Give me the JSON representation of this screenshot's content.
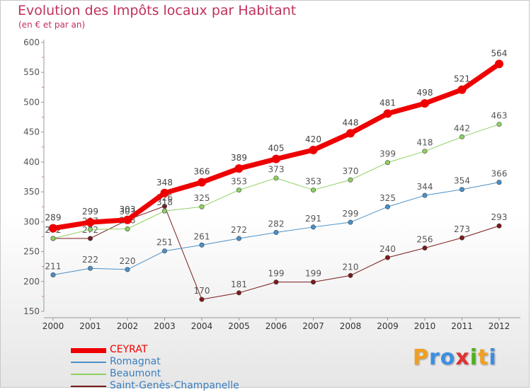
{
  "header": {
    "title": "Evolution des Impôts locaux par Habitant",
    "subtitle": "(en € et par an)"
  },
  "logo": {
    "text": "Proxiti",
    "letter_colors": [
      "#f0a020",
      "#3d8ee0",
      "#3d8ee0",
      "#e03030",
      "#50b020",
      "#f0a020",
      "#3d8ee0"
    ]
  },
  "chart_data": {
    "type": "line",
    "title": "Evolution des Impôts locaux par Habitant",
    "subtitle": "(en € et par an)",
    "xlabel": "",
    "ylabel": "",
    "x": [
      "2000",
      "2001",
      "2002",
      "2003",
      "2004",
      "2005",
      "2006",
      "2007",
      "2008",
      "2009",
      "2010",
      "2011",
      "2012"
    ],
    "ylim": [
      150,
      600
    ],
    "yticks": [
      150,
      200,
      250,
      300,
      350,
      400,
      450,
      500,
      550,
      600
    ],
    "grid": false,
    "legend_position": "bottom-left",
    "series": [
      {
        "name": "Saint-Genès-Champanelle",
        "color": "#7a1a1a",
        "label_color": "#555555",
        "line_width": 1,
        "values": [
          272,
          272,
          303,
          326,
          170,
          181,
          199,
          199,
          210,
          240,
          256,
          273,
          293
        ],
        "labels": [
          "272",
          "272",
          "303",
          "326",
          "170",
          "181",
          "199",
          "199",
          "210",
          "240",
          "256",
          "273",
          "293"
        ]
      },
      {
        "name": "Romagnat",
        "color": "#4a90c8",
        "label_color": "#555555",
        "line_width": 1,
        "values": [
          211,
          222,
          220,
          251,
          261,
          272,
          282,
          291,
          299,
          325,
          344,
          354,
          366
        ],
        "labels": [
          "211",
          "222",
          "220",
          "251",
          "261",
          "272",
          "282",
          "291",
          "299",
          "325",
          "344",
          "354",
          "366"
        ]
      },
      {
        "name": "Beaumont",
        "color": "#8ed160",
        "label_color": "#555555",
        "line_width": 1,
        "values": [
          272,
          287,
          288,
          318,
          325,
          353,
          373,
          353,
          370,
          399,
          418,
          442,
          463
        ],
        "labels": [
          "272",
          "287",
          "288",
          "318",
          "325",
          "353",
          "373",
          "353",
          "370",
          "399",
          "418",
          "442",
          "463"
        ]
      },
      {
        "name": "CEYRAT",
        "color": "#ee0000",
        "label_color": "#444444",
        "line_width": 7,
        "values": [
          289,
          299,
          303,
          348,
          366,
          389,
          405,
          420,
          448,
          481,
          498,
          521,
          564
        ],
        "labels": [
          "289",
          "299",
          "303",
          "348",
          "366",
          "389",
          "405",
          "420",
          "448",
          "481",
          "498",
          "521",
          "564"
        ]
      }
    ]
  },
  "legend": {
    "items": [
      {
        "label": "CEYRAT",
        "color": "#ee0000",
        "label_color": "#ee0000",
        "thickness": 7
      },
      {
        "label": "Romagnat",
        "color": "#4a90c8",
        "label_color": "#3a7fc0",
        "thickness": 2
      },
      {
        "label": "Beaumont",
        "color": "#8ed160",
        "label_color": "#3a7fc0",
        "thickness": 2
      },
      {
        "label": "Saint-Genès-Champanelle",
        "color": "#7a1a1a",
        "label_color": "#3a7fc0",
        "thickness": 2
      }
    ]
  }
}
